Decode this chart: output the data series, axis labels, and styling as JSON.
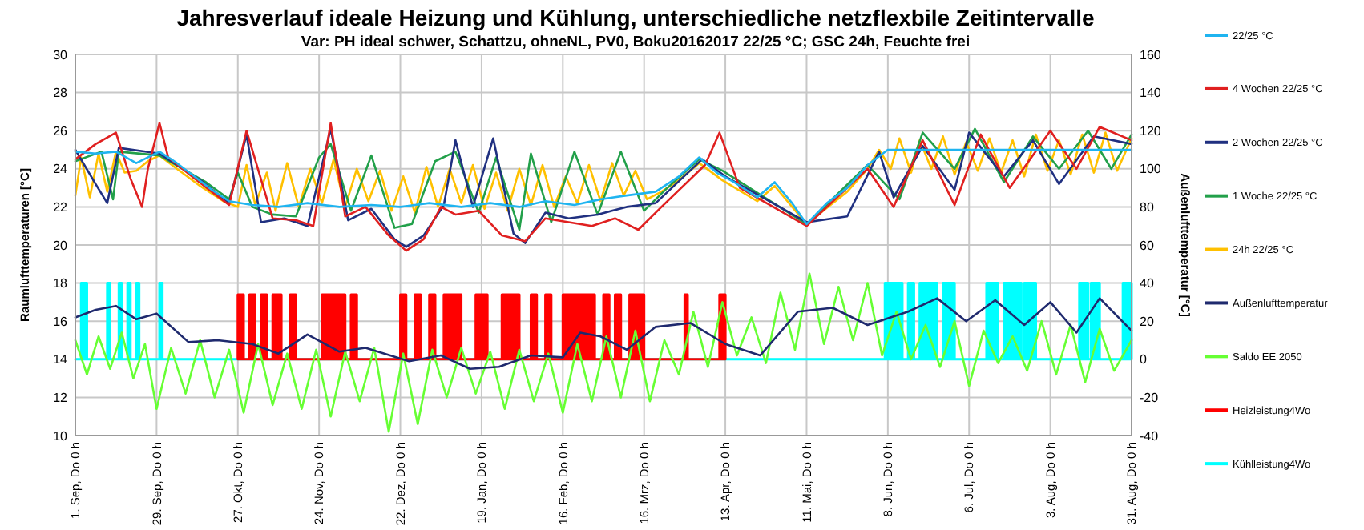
{
  "chart_data": {
    "type": "line",
    "title": "Jahresverlauf ideale Heizung und Kühlung, unterschiedliche netzflexbile Zeitintervalle",
    "subtitle": "Var: PH ideal schwer, Schattzu, ohneNL, PV0, Boku20162017 22/25 °C; GSC 24h, Feuchte frei",
    "ylabel": "Raumlufttemperaturen [°C]",
    "y2label": "Außenlufttemperatur [°C]",
    "xlim": [
      "2016-09-01",
      "2017-08-31"
    ],
    "xticks": [
      {
        "value": "2016-09-01",
        "label": "1. Sep, Do 0 h"
      },
      {
        "value": "2016-09-29",
        "label": "29. Sep, Do 0 h"
      },
      {
        "value": "2016-10-27",
        "label": "27. Okt, Do 0 h"
      },
      {
        "value": "2016-11-24",
        "label": "24. Nov, Do 0 h"
      },
      {
        "value": "2016-12-22",
        "label": "22. Dez, Do 0 h"
      },
      {
        "value": "2017-01-19",
        "label": "19. Jan, Do 0 h"
      },
      {
        "value": "2017-02-16",
        "label": "16. Feb, Do 0 h"
      },
      {
        "value": "2017-03-16",
        "label": "16. Mrz, Do 0 h"
      },
      {
        "value": "2017-04-13",
        "label": "13. Apr, Do 0 h"
      },
      {
        "value": "2017-05-11",
        "label": "11. Mai, Do 0 h"
      },
      {
        "value": "2017-06-08",
        "label": "8. Jun, Do 0 h"
      },
      {
        "value": "2017-07-06",
        "label": "6. Jul, Do 0 h"
      },
      {
        "value": "2017-08-03",
        "label": "3. Aug, Do 0 h"
      },
      {
        "value": "2017-08-31",
        "label": "31. Aug, Do 0 h"
      }
    ],
    "ylim": [
      10,
      30
    ],
    "yticks": [
      10,
      12,
      14,
      16,
      18,
      20,
      22,
      24,
      26,
      28,
      30
    ],
    "y2lim": [
      -40,
      160
    ],
    "y2ticks": [
      -40,
      -20,
      0,
      20,
      40,
      60,
      80,
      100,
      120,
      140,
      160
    ],
    "grid": true,
    "legend": "right",
    "series": [
      {
        "name": "Kühlleistung4Wo",
        "type": "area",
        "axis": "y2",
        "color": "#00ffff",
        "x": [
          "2016-09-01",
          "2016-09-03",
          "2016-09-03",
          "2016-09-05",
          "2016-09-05",
          "2016-09-12",
          "2016-09-12",
          "2016-09-13",
          "2016-09-13",
          "2016-09-16",
          "2016-09-16",
          "2016-09-17",
          "2016-09-17",
          "2016-09-19",
          "2016-09-19",
          "2016-09-20",
          "2016-09-20",
          "2016-09-22",
          "2016-09-22",
          "2016-09-23",
          "2016-09-23",
          "2016-09-30",
          "2016-09-30",
          "2016-10-01",
          "2016-10-01",
          "2017-06-07",
          "2017-06-07",
          "2017-06-13",
          "2017-06-13",
          "2017-06-15",
          "2017-06-15",
          "2017-06-17",
          "2017-06-17",
          "2017-06-19",
          "2017-06-19",
          "2017-06-25",
          "2017-06-25",
          "2017-06-27",
          "2017-06-27",
          "2017-07-01",
          "2017-07-01",
          "2017-07-12",
          "2017-07-12",
          "2017-07-16",
          "2017-07-16",
          "2017-07-18",
          "2017-07-18",
          "2017-07-24",
          "2017-07-24",
          "2017-07-25",
          "2017-07-25",
          "2017-07-29",
          "2017-07-29",
          "2017-08-13",
          "2017-08-13",
          "2017-08-16",
          "2017-08-16",
          "2017-08-17",
          "2017-08-17",
          "2017-08-20",
          "2017-08-20",
          "2017-08-28",
          "2017-08-28",
          "2017-08-31"
        ],
        "values": [
          0,
          0,
          40,
          40,
          0,
          0,
          40,
          40,
          0,
          0,
          40,
          40,
          0,
          0,
          40,
          40,
          0,
          0,
          40,
          40,
          0,
          0,
          40,
          40,
          0,
          0,
          40,
          40,
          0,
          0,
          40,
          40,
          0,
          0,
          40,
          40,
          0,
          0,
          40,
          40,
          0,
          0,
          40,
          40,
          0,
          0,
          40,
          40,
          0,
          0,
          40,
          40,
          0,
          0,
          40,
          40,
          0,
          0,
          40,
          40,
          0,
          0,
          40,
          40
        ]
      },
      {
        "name": "Heizleistung4Wo",
        "type": "area",
        "axis": "y2",
        "color": "#ff0000",
        "x": [
          "2016-10-27",
          "2016-10-27",
          "2016-10-29",
          "2016-10-29",
          "2016-10-31",
          "2016-10-31",
          "2016-11-02",
          "2016-11-02",
          "2016-11-04",
          "2016-11-04",
          "2016-11-06",
          "2016-11-06",
          "2016-11-08",
          "2016-11-08",
          "2016-11-11",
          "2016-11-11",
          "2016-11-14",
          "2016-11-14",
          "2016-11-16",
          "2016-11-16",
          "2016-11-25",
          "2016-11-25",
          "2016-12-03",
          "2016-12-03",
          "2016-12-05",
          "2016-12-05",
          "2016-12-07",
          "2016-12-07",
          "2016-12-22",
          "2016-12-22",
          "2016-12-24",
          "2016-12-24",
          "2016-12-27",
          "2016-12-27",
          "2016-12-29",
          "2016-12-29",
          "2017-01-01",
          "2017-01-01",
          "2017-01-03",
          "2017-01-03",
          "2017-01-06",
          "2017-01-06",
          "2017-01-12",
          "2017-01-12",
          "2017-01-17",
          "2017-01-17",
          "2017-01-21",
          "2017-01-21",
          "2017-01-26",
          "2017-01-26",
          "2017-02-01",
          "2017-02-01",
          "2017-02-05",
          "2017-02-05",
          "2017-02-07",
          "2017-02-07",
          "2017-02-10",
          "2017-02-10",
          "2017-02-12",
          "2017-02-12",
          "2017-02-16",
          "2017-02-16",
          "2017-02-27",
          "2017-02-27",
          "2017-03-02",
          "2017-03-02",
          "2017-03-04",
          "2017-03-04",
          "2017-03-06",
          "2017-03-06",
          "2017-03-08",
          "2017-03-08",
          "2017-03-11",
          "2017-03-11",
          "2017-03-16",
          "2017-03-16",
          "2017-03-30",
          "2017-03-30",
          "2017-03-31",
          "2017-03-31",
          "2017-04-11",
          "2017-04-11",
          "2017-04-13",
          "2017-04-13"
        ],
        "values": [
          0,
          34,
          34,
          0,
          0,
          34,
          34,
          0,
          0,
          34,
          34,
          0,
          0,
          34,
          34,
          0,
          0,
          34,
          34,
          0,
          0,
          34,
          34,
          0,
          0,
          34,
          34,
          0,
          0,
          34,
          34,
          0,
          0,
          34,
          34,
          0,
          0,
          34,
          34,
          0,
          0,
          34,
          34,
          0,
          0,
          34,
          34,
          0,
          0,
          34,
          34,
          0,
          0,
          34,
          34,
          0,
          0,
          34,
          34,
          0,
          0,
          34,
          34,
          0,
          0,
          34,
          34,
          0,
          0,
          34,
          34,
          0,
          0,
          34,
          34,
          0,
          0,
          34,
          34,
          0,
          0,
          34,
          34,
          0
        ]
      },
      {
        "name": "Saldo EE 2050",
        "axis": "y2",
        "color": "#66ff33",
        "x": [
          "2016-09-01",
          "2016-09-05",
          "2016-09-09",
          "2016-09-13",
          "2016-09-17",
          "2016-09-21",
          "2016-09-25",
          "2016-09-29",
          "2016-10-04",
          "2016-10-09",
          "2016-10-14",
          "2016-10-19",
          "2016-10-24",
          "2016-10-29",
          "2016-11-03",
          "2016-11-08",
          "2016-11-13",
          "2016-11-18",
          "2016-11-23",
          "2016-11-28",
          "2016-12-03",
          "2016-12-08",
          "2016-12-13",
          "2016-12-18",
          "2016-12-23",
          "2016-12-28",
          "2017-01-02",
          "2017-01-07",
          "2017-01-12",
          "2017-01-17",
          "2017-01-22",
          "2017-01-27",
          "2017-02-01",
          "2017-02-06",
          "2017-02-11",
          "2017-02-16",
          "2017-02-21",
          "2017-02-26",
          "2017-03-03",
          "2017-03-08",
          "2017-03-13",
          "2017-03-18",
          "2017-03-23",
          "2017-03-28",
          "2017-04-02",
          "2017-04-07",
          "2017-04-12",
          "2017-04-17",
          "2017-04-22",
          "2017-04-27",
          "2017-05-02",
          "2017-05-07",
          "2017-05-12",
          "2017-05-17",
          "2017-05-22",
          "2017-05-27",
          "2017-06-01",
          "2017-06-06",
          "2017-06-11",
          "2017-06-16",
          "2017-06-21",
          "2017-06-26",
          "2017-07-01",
          "2017-07-06",
          "2017-07-11",
          "2017-07-16",
          "2017-07-21",
          "2017-07-26",
          "2017-07-31",
          "2017-08-05",
          "2017-08-10",
          "2017-08-15",
          "2017-08-20",
          "2017-08-25",
          "2017-08-31"
        ],
        "values": [
          10,
          -8,
          12,
          -5,
          14,
          -10,
          8,
          -26,
          6,
          -18,
          10,
          -20,
          5,
          -28,
          8,
          -24,
          3,
          -26,
          5,
          -30,
          4,
          -22,
          6,
          -38,
          3,
          -34,
          5,
          -20,
          6,
          -18,
          4,
          -26,
          5,
          -22,
          3,
          -28,
          8,
          -22,
          12,
          -20,
          15,
          -22,
          10,
          -8,
          25,
          -4,
          30,
          2,
          22,
          -2,
          35,
          5,
          45,
          8,
          38,
          10,
          40,
          2,
          25,
          0,
          18,
          -4,
          20,
          -14,
          15,
          -2,
          12,
          -6,
          20,
          -8,
          18,
          -12,
          16,
          -6,
          10
        ]
      },
      {
        "name": "Außenlufttemperatur",
        "axis": "y2",
        "color": "#1f2a6e",
        "x": [
          "2016-09-01",
          "2016-09-08",
          "2016-09-15",
          "2016-09-22",
          "2016-09-29",
          "2016-10-10",
          "2016-10-20",
          "2016-11-01",
          "2016-11-10",
          "2016-11-20",
          "2016-12-01",
          "2016-12-10",
          "2016-12-25",
          "2017-01-05",
          "2017-01-15",
          "2017-01-25",
          "2017-02-05",
          "2017-02-16",
          "2017-02-22",
          "2017-03-01",
          "2017-03-10",
          "2017-03-20",
          "2017-04-01",
          "2017-04-13",
          "2017-04-25",
          "2017-05-08",
          "2017-05-20",
          "2017-06-01",
          "2017-06-15",
          "2017-06-25",
          "2017-07-05",
          "2017-07-15",
          "2017-07-25",
          "2017-08-03",
          "2017-08-12",
          "2017-08-20",
          "2017-08-31"
        ],
        "values": [
          22,
          26,
          28,
          21,
          24,
          9,
          10,
          8,
          3,
          13,
          4,
          6,
          -1,
          2,
          -5,
          -4,
          2,
          1,
          14,
          12,
          5,
          17,
          19,
          8,
          2,
          25,
          27,
          18,
          25,
          32,
          20,
          31,
          18,
          30,
          14,
          32,
          15
        ]
      },
      {
        "name": "24h 22/25 °C",
        "color": "#ffc000",
        "x": [
          "2016-09-01",
          "2016-09-03",
          "2016-09-06",
          "2016-09-09",
          "2016-09-12",
          "2016-09-15",
          "2016-09-18",
          "2016-09-22",
          "2016-09-26",
          "2016-09-30",
          "2016-10-06",
          "2016-10-14",
          "2016-10-22",
          "2016-10-27",
          "2016-10-30",
          "2016-11-02",
          "2016-11-06",
          "2016-11-09",
          "2016-11-13",
          "2016-11-17",
          "2016-11-21",
          "2016-11-25",
          "2016-11-29",
          "2016-12-03",
          "2016-12-07",
          "2016-12-11",
          "2016-12-15",
          "2016-12-19",
          "2016-12-23",
          "2016-12-27",
          "2016-12-31",
          "2017-01-04",
          "2017-01-08",
          "2017-01-12",
          "2017-01-16",
          "2017-01-20",
          "2017-01-24",
          "2017-01-28",
          "2017-02-01",
          "2017-02-05",
          "2017-02-09",
          "2017-02-13",
          "2017-02-17",
          "2017-02-21",
          "2017-02-25",
          "2017-03-01",
          "2017-03-05",
          "2017-03-09",
          "2017-03-13",
          "2017-03-17",
          "2017-03-22",
          "2017-03-28",
          "2017-04-04",
          "2017-04-12",
          "2017-04-24",
          "2017-04-30",
          "2017-05-11",
          "2017-05-25",
          "2017-06-01",
          "2017-06-05",
          "2017-06-09",
          "2017-06-12",
          "2017-06-16",
          "2017-06-19",
          "2017-06-23",
          "2017-06-27",
          "2017-07-01",
          "2017-07-05",
          "2017-07-09",
          "2017-07-13",
          "2017-07-17",
          "2017-07-21",
          "2017-07-25",
          "2017-07-29",
          "2017-08-02",
          "2017-08-06",
          "2017-08-10",
          "2017-08-14",
          "2017-08-18",
          "2017-08-22",
          "2017-08-26",
          "2017-08-31"
        ],
        "values": [
          22.6,
          24.6,
          22.5,
          24.8,
          22.8,
          24.9,
          23.8,
          23.9,
          24.4,
          24.7,
          24.0,
          23.1,
          22.3,
          22.0,
          24.2,
          22.1,
          23.8,
          21.8,
          24.3,
          22.0,
          24.0,
          22.2,
          24.5,
          22.0,
          24.0,
          22.3,
          23.9,
          21.8,
          23.6,
          21.7,
          24.1,
          22.0,
          24.0,
          22.2,
          24.2,
          21.9,
          23.8,
          21.8,
          24.0,
          22.1,
          24.2,
          22.0,
          23.6,
          22.2,
          24.2,
          22.3,
          24.3,
          22.6,
          23.9,
          22.4,
          22.8,
          23.4,
          24.3,
          23.4,
          22.3,
          23.1,
          21.1,
          22.8,
          24.0,
          25.0,
          24.0,
          25.6,
          23.8,
          25.5,
          24.0,
          25.7,
          23.7,
          25.4,
          23.9,
          25.6,
          23.8,
          25.5,
          23.6,
          25.8,
          23.9,
          25.5,
          23.7,
          25.8,
          23.8,
          25.9,
          23.9,
          25.6
        ]
      },
      {
        "name": "1 Woche  22/25 °C",
        "color": "#22a04a",
        "x": [
          "2016-09-01",
          "2016-09-10",
          "2016-09-14",
          "2016-09-16",
          "2016-09-30",
          "2016-10-16",
          "2016-10-24",
          "2016-10-27",
          "2016-11-01",
          "2016-11-08",
          "2016-11-16",
          "2016-11-24",
          "2016-11-28",
          "2016-12-05",
          "2016-12-12",
          "2016-12-20",
          "2016-12-26",
          "2017-01-03",
          "2017-01-10",
          "2017-01-18",
          "2017-01-24",
          "2017-02-01",
          "2017-02-05",
          "2017-02-12",
          "2017-02-20",
          "2017-02-28",
          "2017-03-08",
          "2017-03-16",
          "2017-03-24",
          "2017-04-04",
          "2017-04-12",
          "2017-05-11",
          "2017-06-01",
          "2017-06-12",
          "2017-06-20",
          "2017-07-01",
          "2017-07-08",
          "2017-07-18",
          "2017-07-28",
          "2017-08-06",
          "2017-08-16",
          "2017-08-24",
          "2017-08-31"
        ],
        "values": [
          24.4,
          24.9,
          22.4,
          24.9,
          24.7,
          23.3,
          22.4,
          23.8,
          22.0,
          21.6,
          21.5,
          24.6,
          25.3,
          21.8,
          24.7,
          20.9,
          21.1,
          24.4,
          24.9,
          21.7,
          24.6,
          20.8,
          24.8,
          21.2,
          24.9,
          21.6,
          24.9,
          21.8,
          23.0,
          24.5,
          23.9,
          21.1,
          24.2,
          22.4,
          25.9,
          24.0,
          26.1,
          23.3,
          25.7,
          24.0,
          26.0,
          24.0,
          25.8
        ]
      },
      {
        "name": "2 Wochen  22/25 °C",
        "color": "#203080",
        "x": [
          "2016-09-01",
          "2016-09-08",
          "2016-09-12",
          "2016-09-16",
          "2016-09-30",
          "2016-10-15",
          "2016-10-24",
          "2016-10-30",
          "2016-11-04",
          "2016-11-12",
          "2016-11-20",
          "2016-11-28",
          "2016-12-04",
          "2016-12-12",
          "2016-12-20",
          "2016-12-24",
          "2016-12-30",
          "2017-01-06",
          "2017-01-10",
          "2017-01-16",
          "2017-01-23",
          "2017-01-30",
          "2017-02-03",
          "2017-02-10",
          "2017-02-18",
          "2017-02-28",
          "2017-03-10",
          "2017-03-20",
          "2017-04-05",
          "2017-04-13",
          "2017-05-11",
          "2017-05-25",
          "2017-06-05",
          "2017-06-10",
          "2017-06-20",
          "2017-07-01",
          "2017-07-06",
          "2017-07-18",
          "2017-07-28",
          "2017-08-06",
          "2017-08-18",
          "2017-08-31"
        ],
        "values": [
          25.0,
          23.2,
          22.2,
          25.1,
          24.8,
          23.3,
          22.2,
          25.8,
          21.2,
          21.4,
          21.0,
          26.1,
          21.3,
          21.9,
          20.3,
          19.9,
          20.5,
          22.1,
          25.5,
          22.0,
          25.6,
          20.6,
          20.1,
          21.7,
          21.4,
          21.6,
          22.0,
          22.2,
          24.5,
          23.6,
          21.2,
          21.5,
          24.9,
          22.5,
          25.2,
          22.9,
          25.9,
          23.6,
          25.5,
          23.2,
          25.7,
          25.3
        ]
      },
      {
        "name": "4 Wochen  22/25 °C",
        "color": "#e02020",
        "x": [
          "2016-09-01",
          "2016-09-08",
          "2016-09-15",
          "2016-09-20",
          "2016-09-24",
          "2016-09-26",
          "2016-09-30",
          "2016-10-03",
          "2016-10-12",
          "2016-10-24",
          "2016-10-30",
          "2016-11-08",
          "2016-11-16",
          "2016-11-22",
          "2016-11-28",
          "2016-12-03",
          "2016-12-10",
          "2016-12-18",
          "2016-12-24",
          "2016-12-30",
          "2017-01-05",
          "2017-01-10",
          "2017-01-18",
          "2017-01-26",
          "2017-02-03",
          "2017-02-10",
          "2017-02-18",
          "2017-02-26",
          "2017-03-06",
          "2017-03-14",
          "2017-03-22",
          "2017-04-06",
          "2017-04-11",
          "2017-04-18",
          "2017-05-11",
          "2017-06-01",
          "2017-06-10",
          "2017-06-20",
          "2017-07-01",
          "2017-07-10",
          "2017-07-20",
          "2017-08-03",
          "2017-08-12",
          "2017-08-20",
          "2017-08-31"
        ],
        "values": [
          24.5,
          25.3,
          25.9,
          23.5,
          22.0,
          24.0,
          26.4,
          24.6,
          23.5,
          22.1,
          26.0,
          21.4,
          21.3,
          21.0,
          26.4,
          21.5,
          22.0,
          20.5,
          19.7,
          20.3,
          22.0,
          21.6,
          21.8,
          20.5,
          20.2,
          21.4,
          21.2,
          21.0,
          21.4,
          20.8,
          22.0,
          24.2,
          25.9,
          23.0,
          21.0,
          24.0,
          22.0,
          25.5,
          22.1,
          25.8,
          23.0,
          26.0,
          24.0,
          26.2,
          25.5
        ]
      },
      {
        "name": "22/25 °C",
        "color": "#1fb4f0",
        "x": [
          "2016-09-01",
          "2016-09-08",
          "2016-09-15",
          "2016-09-22",
          "2016-09-30",
          "2016-10-06",
          "2016-10-12",
          "2016-10-18",
          "2016-10-24",
          "2016-11-01",
          "2016-11-10",
          "2016-11-20",
          "2016-12-01",
          "2016-12-12",
          "2016-12-22",
          "2017-01-01",
          "2017-01-12",
          "2017-01-22",
          "2017-02-01",
          "2017-02-10",
          "2017-02-20",
          "2017-03-01",
          "2017-03-10",
          "2017-03-20",
          "2017-03-28",
          "2017-04-04",
          "2017-04-10",
          "2017-04-16",
          "2017-04-24",
          "2017-04-30",
          "2017-05-06",
          "2017-05-11",
          "2017-05-18",
          "2017-05-25",
          "2017-06-01",
          "2017-06-08",
          "2017-06-20",
          "2017-07-06",
          "2017-07-20",
          "2017-08-03",
          "2017-08-17",
          "2017-08-31"
        ],
        "values": [
          24.9,
          24.8,
          24.9,
          24.3,
          24.9,
          24.3,
          23.6,
          22.9,
          22.3,
          22.1,
          22.0,
          22.2,
          22.0,
          22.1,
          22.0,
          22.2,
          22.0,
          22.2,
          22.0,
          22.3,
          22.1,
          22.4,
          22.6,
          22.8,
          23.6,
          24.6,
          23.8,
          23.3,
          22.5,
          23.3,
          22.2,
          21.1,
          22.2,
          23.0,
          24.2,
          25.0,
          25.0,
          25.0,
          25.0,
          25.0,
          25.0,
          25.0
        ]
      }
    ]
  }
}
